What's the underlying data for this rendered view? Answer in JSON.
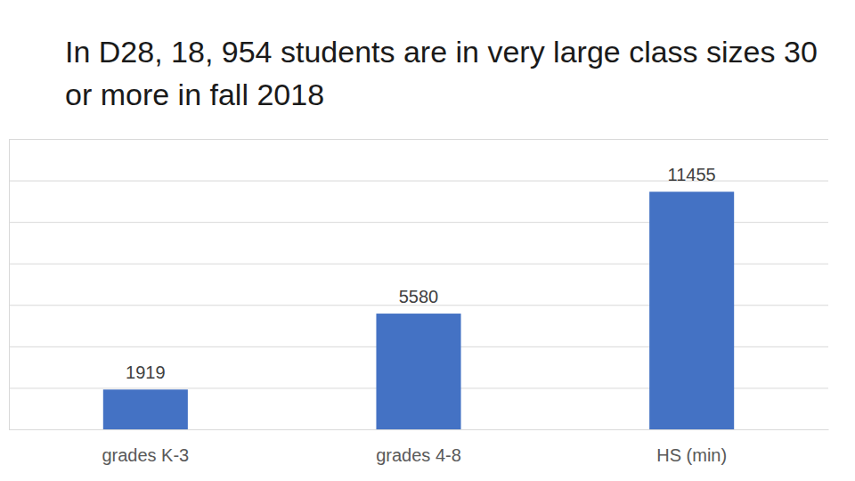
{
  "chart_data": {
    "type": "bar",
    "title": "In D28, 18, 954 students are in very large class sizes 30 or more in fall 2018",
    "categories": [
      "grades K-3",
      "grades 4-8",
      "HS (min)"
    ],
    "values": [
      1919,
      5580,
      11455
    ],
    "color": "#4472c4",
    "ylim": [
      0,
      14000
    ],
    "yticks": [
      0,
      2000,
      4000,
      6000,
      8000,
      10000,
      12000,
      14000
    ],
    "grid": true,
    "data_labels": true,
    "tick_labels": "x"
  }
}
